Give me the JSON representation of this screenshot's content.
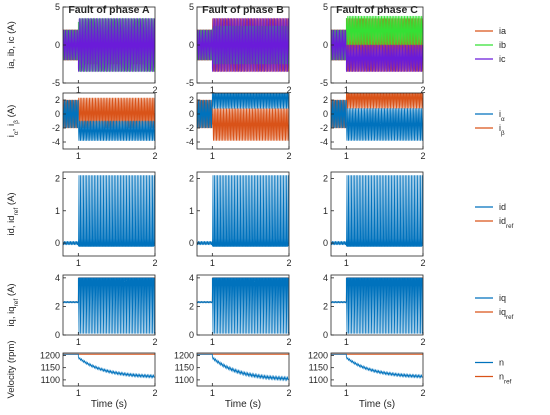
{
  "colors": {
    "ia": "#d95319",
    "ib": "#34e034",
    "ic": "#6a1bd9",
    "blue": "#0072bd",
    "orange": "#d95319"
  },
  "chart_data": {
    "type": "line",
    "column_titles": [
      "Fault of phase A",
      "Fault of phase B",
      "Fault of phase C"
    ],
    "xlabel": "Time (s)",
    "xlim": [
      0.8,
      2
    ],
    "xticks": [
      1,
      2
    ],
    "fault_time": 1,
    "rows": [
      {
        "ylabel": "ia, ib, ic (A)",
        "ylim": [
          -5,
          5
        ],
        "yticks": [
          -5,
          0,
          5
        ],
        "legend": [
          {
            "key": "ia",
            "label": "ia"
          },
          {
            "key": "ib",
            "label": "ib"
          },
          {
            "key": "ic",
            "label": "ic"
          }
        ],
        "panels": [
          {
            "series": [
              {
                "key": "ia",
                "pre_amplitude": 2,
                "post": {
                  "type": "band",
                  "lo": -2.5,
                  "hi": 0
                }
              },
              {
                "key": "ib",
                "pre_amplitude": 2,
                "post": {
                  "type": "band",
                  "lo": -3.5,
                  "hi": 3.5
                }
              },
              {
                "key": "ic",
                "pre_amplitude": 2,
                "post": {
                  "type": "band",
                  "lo": -3.5,
                  "hi": 3.5
                }
              }
            ]
          },
          {
            "series": [
              {
                "key": "ia",
                "pre_amplitude": 2,
                "post": {
                  "type": "band",
                  "lo": -3.5,
                  "hi": 3.5
                }
              },
              {
                "key": "ib",
                "pre_amplitude": 2,
                "post": {
                  "type": "band",
                  "lo": -2.5,
                  "hi": 2.5
                }
              },
              {
                "key": "ic",
                "pre_amplitude": 2,
                "post": {
                  "type": "band",
                  "lo": -3.5,
                  "hi": 3.5
                }
              }
            ]
          },
          {
            "series": [
              {
                "key": "ia",
                "pre_amplitude": 2,
                "post": {
                  "type": "band",
                  "lo": -3.5,
                  "hi": 3.5
                }
              },
              {
                "key": "ib",
                "pre_amplitude": 2,
                "post": {
                  "type": "band",
                  "lo": 0,
                  "hi": 3.8
                }
              },
              {
                "key": "ic",
                "pre_amplitude": 2,
                "post": {
                  "type": "band",
                  "lo": -3.5,
                  "hi": 0
                }
              }
            ]
          }
        ]
      },
      {
        "ylabel": "iα, iβ (A)",
        "ylim": [
          -5,
          3
        ],
        "yticks": [
          -4,
          -2,
          0,
          2
        ],
        "legend": [
          {
            "key": "blue",
            "label": "iα"
          },
          {
            "key": "orange",
            "label": "iβ"
          }
        ],
        "panels": [
          {
            "series": [
              {
                "key": "orange",
                "pre_amplitude": 2,
                "post": {
                  "type": "band",
                  "lo": -2.0,
                  "hi": 2.3
                }
              },
              {
                "key": "blue",
                "pre_amplitude": 2,
                "post": {
                  "type": "band",
                  "lo": -3.8,
                  "hi": -1.0
                }
              }
            ]
          },
          {
            "series": [
              {
                "key": "orange",
                "pre_amplitude": 2,
                "post": {
                  "type": "band",
                  "lo": -3.8,
                  "hi": 0.8
                }
              },
              {
                "key": "blue",
                "pre_amplitude": 2,
                "post": {
                  "type": "band",
                  "lo": 0.8,
                  "hi": 3.8
                }
              }
            ]
          },
          {
            "series": [
              {
                "key": "orange",
                "pre_amplitude": 2,
                "post": {
                  "type": "band",
                  "lo": 0.8,
                  "hi": 3.8
                }
              },
              {
                "key": "blue",
                "pre_amplitude": 2,
                "post": {
                  "type": "band",
                  "lo": -3.8,
                  "hi": 0.8
                }
              }
            ]
          }
        ]
      },
      {
        "ylabel": "id, idref (A)",
        "ylim": [
          -0.4,
          2.2
        ],
        "yticks": [
          0,
          1,
          2
        ],
        "legend": [
          {
            "key": "blue",
            "label": "id"
          },
          {
            "key": "orange",
            "label": "idref"
          }
        ],
        "panels": [
          {
            "series": [
              {
                "key": "orange",
                "type": "const",
                "value": 0
              },
              {
                "key": "blue",
                "pre_amplitude": 0.05,
                "post": {
                  "type": "spikes",
                  "base_lo": -0.1,
                  "base_hi": 0.15,
                  "peak": 2.1
                }
              }
            ]
          },
          {
            "series": [
              {
                "key": "orange",
                "type": "const",
                "value": 0
              },
              {
                "key": "blue",
                "pre_amplitude": 0.05,
                "post": {
                  "type": "spikes",
                  "base_lo": -0.1,
                  "base_hi": 0.15,
                  "peak": 2.1
                }
              }
            ]
          },
          {
            "series": [
              {
                "key": "orange",
                "type": "const",
                "value": 0
              },
              {
                "key": "blue",
                "pre_amplitude": 0.05,
                "post": {
                  "type": "spikes",
                  "base_lo": -0.1,
                  "base_hi": 0.15,
                  "peak": 2.1
                }
              }
            ]
          }
        ]
      },
      {
        "ylabel": "iq, iqref (A)",
        "ylim": [
          0,
          4.2
        ],
        "yticks": [
          0,
          2,
          4
        ],
        "legend": [
          {
            "key": "blue",
            "label": "iq"
          },
          {
            "key": "orange",
            "label": "iqref"
          }
        ],
        "panels": [
          {
            "series": [
              {
                "key": "orange",
                "type": "step",
                "pre": 2.3,
                "post": 4
              },
              {
                "key": "blue",
                "pre_amplitude": 0.05,
                "pre_offset": 2.3,
                "post": {
                  "type": "dips",
                  "hi": 4,
                  "lo": 0.1
                }
              }
            ]
          },
          {
            "series": [
              {
                "key": "orange",
                "type": "step",
                "pre": 2.3,
                "post": 4
              },
              {
                "key": "blue",
                "pre_amplitude": 0.05,
                "pre_offset": 2.3,
                "post": {
                  "type": "dips",
                  "hi": 4,
                  "lo": 0.1
                }
              }
            ]
          },
          {
            "series": [
              {
                "key": "orange",
                "type": "step",
                "pre": 2.3,
                "post": 4
              },
              {
                "key": "blue",
                "pre_amplitude": 0.05,
                "pre_offset": 2.3,
                "post": {
                  "type": "dips",
                  "hi": 4,
                  "lo": 0.1
                }
              }
            ]
          }
        ]
      },
      {
        "ylabel": "Velocity (rpm)",
        "ylim": [
          1075,
          1210
        ],
        "yticks": [
          1100,
          1150,
          1200
        ],
        "legend": [
          {
            "key": "blue",
            "label": "n"
          },
          {
            "key": "orange",
            "label": "nref"
          }
        ],
        "panels": [
          {
            "series": [
              {
                "key": "orange",
                "type": "const",
                "value": 1205
              },
              {
                "key": "blue",
                "pre_amplitude": 0,
                "pre_offset": 1205,
                "post": {
                  "type": "decay",
                  "start": 1190,
                  "end": 1110,
                  "ripple": 10
                }
              }
            ]
          },
          {
            "series": [
              {
                "key": "orange",
                "type": "const",
                "value": 1205
              },
              {
                "key": "blue",
                "pre_amplitude": 0,
                "pre_offset": 1205,
                "post": {
                  "type": "decay",
                  "start": 1190,
                  "end": 1100,
                  "ripple": 12
                }
              }
            ]
          },
          {
            "series": [
              {
                "key": "orange",
                "type": "const",
                "value": 1205
              },
              {
                "key": "blue",
                "pre_amplitude": 0,
                "pre_offset": 1205,
                "post": {
                  "type": "decay",
                  "start": 1190,
                  "end": 1110,
                  "ripple": 10
                }
              }
            ]
          }
        ]
      }
    ]
  }
}
